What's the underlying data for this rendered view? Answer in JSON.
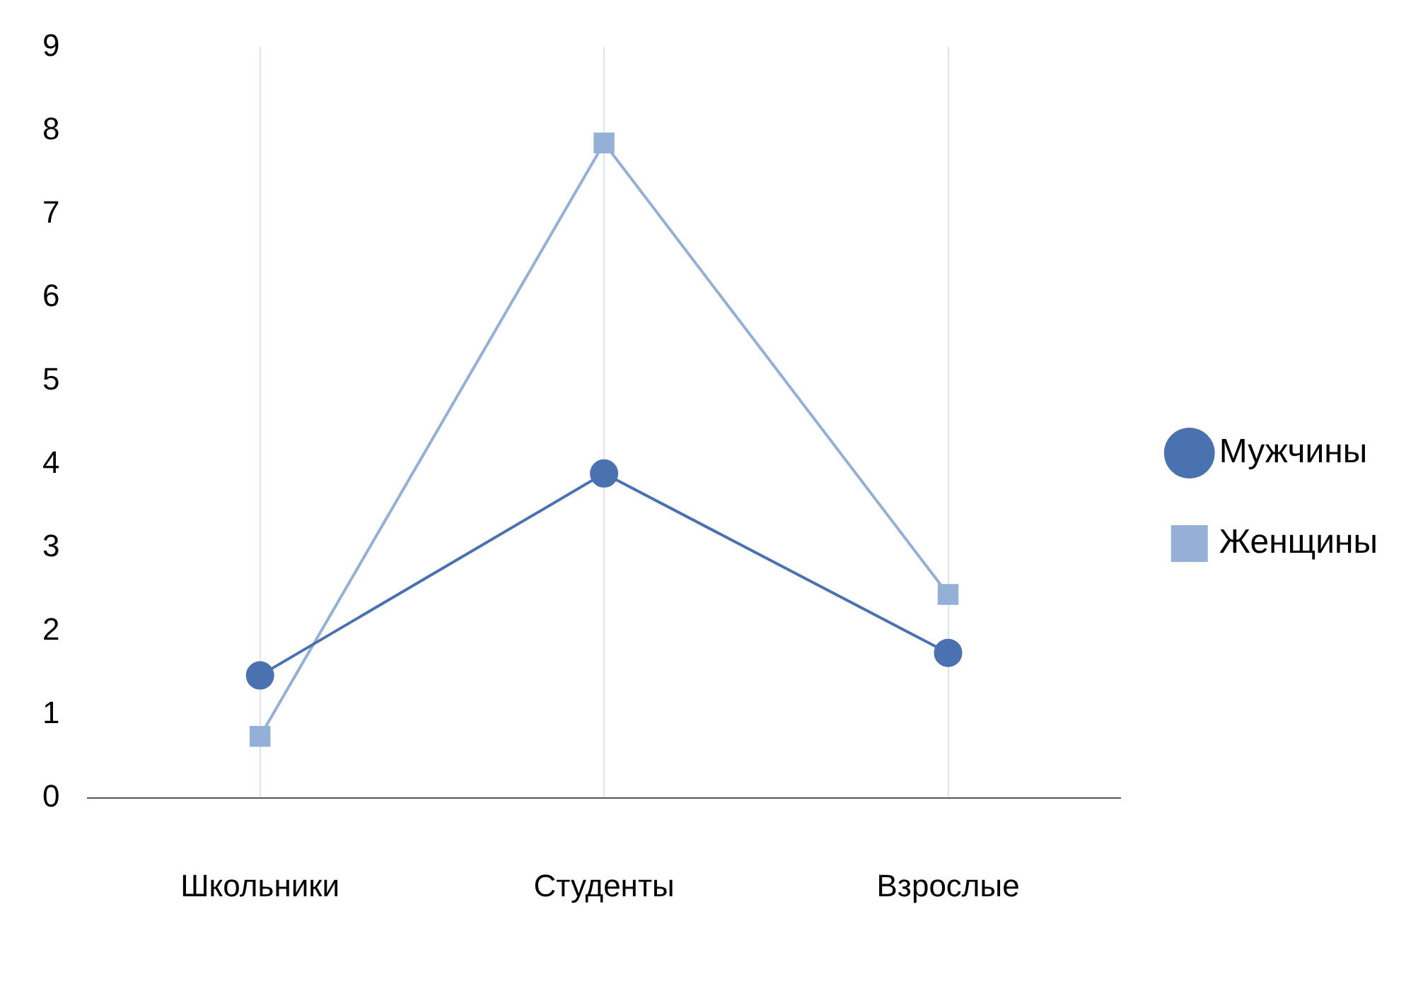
{
  "chart_data": {
    "type": "line",
    "categories": [
      "Школьники",
      "Студенты",
      "Взрослые"
    ],
    "series": [
      {
        "name": "Мужчины",
        "color": "#4a72b0",
        "marker": "circle",
        "values": [
          1.47,
          3.89,
          1.74
        ]
      },
      {
        "name": "Женщины",
        "color": "#95b0d6",
        "marker": "square",
        "values": [
          0.74,
          7.85,
          2.44
        ]
      }
    ],
    "ylim": [
      0,
      9
    ],
    "yticks": [
      0,
      1,
      2,
      3,
      4,
      5,
      6,
      7,
      8,
      9
    ],
    "grid": "x",
    "legend": "right"
  }
}
